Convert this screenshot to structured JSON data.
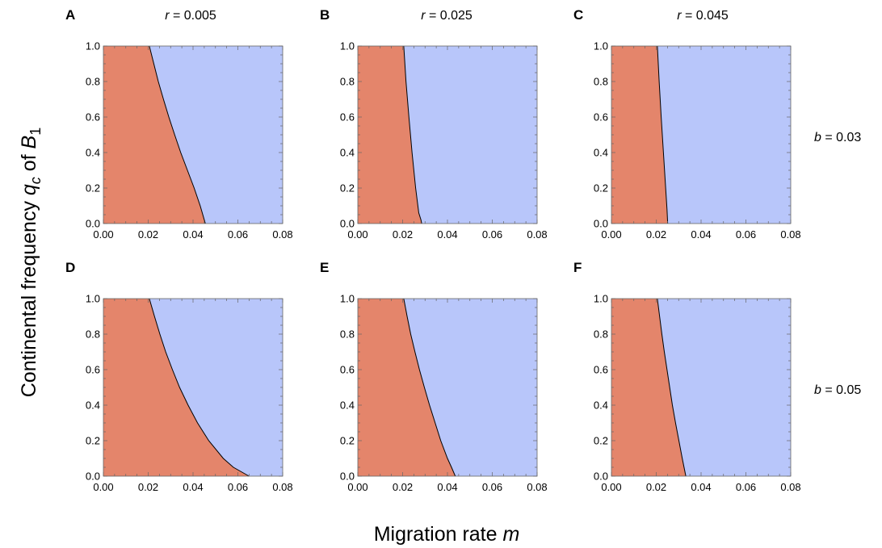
{
  "chart_data": {
    "type": "area",
    "xlabel_text": "Migration rate ",
    "xlabel_var": "m",
    "ylabel_text": "Continental frequency ",
    "ylabel_var": "q",
    "ylabel_var_sub": "c",
    "ylabel_of": " of ",
    "ylabel_allele": "B",
    "ylabel_allele_sub": "1",
    "xlim": [
      0,
      0.08
    ],
    "ylim": [
      0,
      1
    ],
    "x_ticks": [
      0.0,
      0.02,
      0.04,
      0.06,
      0.08
    ],
    "x_tick_labels": [
      "0.00",
      "0.02",
      "0.04",
      "0.06",
      "0.08"
    ],
    "y_ticks": [
      0.0,
      0.2,
      0.4,
      0.6,
      0.8,
      1.0
    ],
    "y_tick_labels": [
      "0.0",
      "0.2",
      "0.4",
      "0.6",
      "0.8",
      "1.0"
    ],
    "colors": {
      "region_low_m": "#e4856b",
      "region_high_m": "#b8c6fa",
      "boundary": "#000000"
    },
    "columns": [
      {
        "var": "r",
        "value_text": " = 0.005"
      },
      {
        "var": "r",
        "value_text": " = 0.025"
      },
      {
        "var": "r",
        "value_text": " = 0.045"
      }
    ],
    "rows": [
      {
        "var": "b",
        "value_text": " = 0.03"
      },
      {
        "var": "b",
        "value_text": " = 0.05"
      }
    ],
    "panels": [
      {
        "letter": "A",
        "row": 0,
        "col": 0,
        "r": 0.005,
        "b": 0.03,
        "boundary": [
          [
            0.0205,
            1.0
          ],
          [
            0.0225,
            0.9
          ],
          [
            0.0245,
            0.8
          ],
          [
            0.0268,
            0.7
          ],
          [
            0.0292,
            0.6
          ],
          [
            0.0318,
            0.5
          ],
          [
            0.0345,
            0.4
          ],
          [
            0.0375,
            0.3
          ],
          [
            0.0405,
            0.2
          ],
          [
            0.0432,
            0.1
          ],
          [
            0.0455,
            0.0
          ]
        ]
      },
      {
        "letter": "B",
        "row": 0,
        "col": 1,
        "r": 0.025,
        "b": 0.03,
        "boundary": [
          [
            0.0205,
            1.0
          ],
          [
            0.0215,
            0.8
          ],
          [
            0.0228,
            0.6
          ],
          [
            0.0242,
            0.4
          ],
          [
            0.0258,
            0.2
          ],
          [
            0.0272,
            0.06
          ],
          [
            0.0282,
            0.02
          ],
          [
            0.0285,
            0.0
          ]
        ]
      },
      {
        "letter": "C",
        "row": 0,
        "col": 2,
        "r": 0.045,
        "b": 0.03,
        "boundary": [
          [
            0.0205,
            1.0
          ],
          [
            0.0213,
            0.8
          ],
          [
            0.0222,
            0.6
          ],
          [
            0.0232,
            0.4
          ],
          [
            0.0242,
            0.2
          ],
          [
            0.0248,
            0.08
          ],
          [
            0.0251,
            0.0
          ]
        ]
      },
      {
        "letter": "D",
        "row": 1,
        "col": 0,
        "r": 0.005,
        "b": 0.05,
        "boundary": [
          [
            0.0205,
            1.0
          ],
          [
            0.0228,
            0.9
          ],
          [
            0.0252,
            0.8
          ],
          [
            0.0278,
            0.7
          ],
          [
            0.0308,
            0.6
          ],
          [
            0.034,
            0.5
          ],
          [
            0.0378,
            0.4
          ],
          [
            0.042,
            0.3
          ],
          [
            0.047,
            0.2
          ],
          [
            0.0535,
            0.1
          ],
          [
            0.058,
            0.05
          ],
          [
            0.065,
            0.0
          ]
        ]
      },
      {
        "letter": "E",
        "row": 1,
        "col": 1,
        "r": 0.025,
        "b": 0.05,
        "boundary": [
          [
            0.0205,
            1.0
          ],
          [
            0.022,
            0.9
          ],
          [
            0.0236,
            0.8
          ],
          [
            0.0255,
            0.7
          ],
          [
            0.0275,
            0.6
          ],
          [
            0.0297,
            0.5
          ],
          [
            0.032,
            0.4
          ],
          [
            0.0345,
            0.3
          ],
          [
            0.037,
            0.2
          ],
          [
            0.04,
            0.1
          ],
          [
            0.0418,
            0.05
          ],
          [
            0.0435,
            0.0
          ]
        ]
      },
      {
        "letter": "F",
        "row": 1,
        "col": 2,
        "r": 0.045,
        "b": 0.05,
        "boundary": [
          [
            0.0205,
            1.0
          ],
          [
            0.0215,
            0.9
          ],
          [
            0.0225,
            0.8
          ],
          [
            0.0236,
            0.7
          ],
          [
            0.0248,
            0.6
          ],
          [
            0.026,
            0.5
          ],
          [
            0.0272,
            0.4
          ],
          [
            0.0286,
            0.3
          ],
          [
            0.0301,
            0.2
          ],
          [
            0.0316,
            0.1
          ],
          [
            0.0332,
            0.0
          ]
        ]
      }
    ]
  }
}
